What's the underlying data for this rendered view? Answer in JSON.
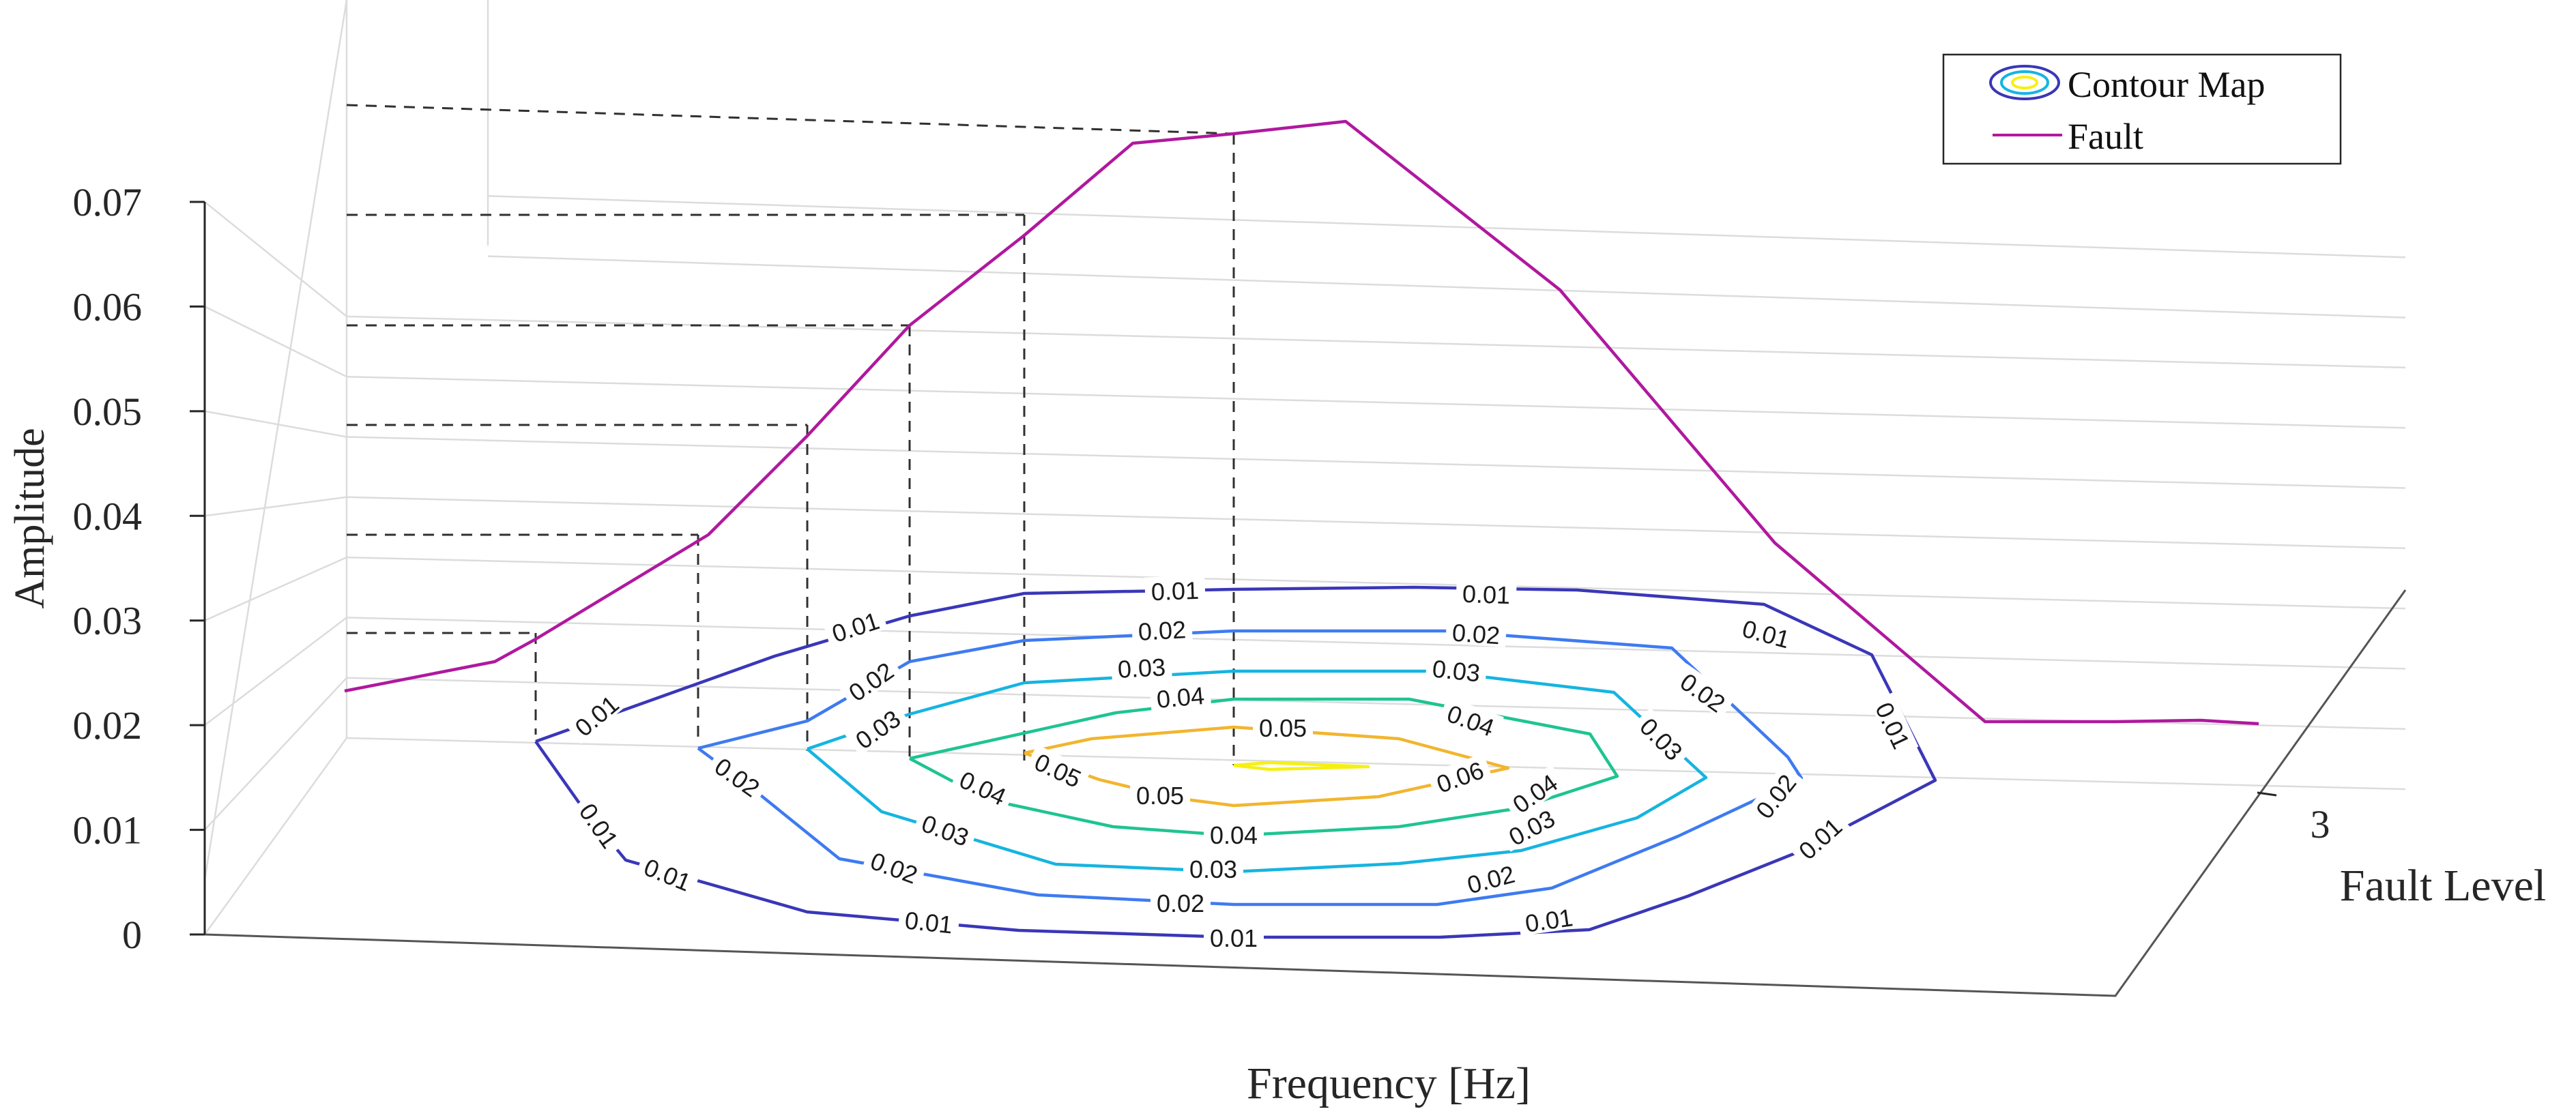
{
  "chart_data": {
    "type": "line",
    "title": "",
    "xlabel": "Frequency [Hz]",
    "ylabel": "Amplitude",
    "zlabel": "Fault Level",
    "zticks": [
      "3"
    ],
    "ylim": [
      0,
      0.07
    ],
    "yticks": [
      "0",
      "0.01",
      "0.02",
      "0.03",
      "0.04",
      "0.05",
      "0.06",
      "0.07"
    ],
    "grid": true,
    "legend_location": "top-right",
    "legend": [
      "Contour Map",
      "Fault"
    ],
    "colors": {
      "fault": "#B0189E",
      "axis": "#262626",
      "grid": "#dcdcdc",
      "dash": "#303030",
      "level_001": "#3A37B8",
      "level_002": "#3E7BF0",
      "level_003": "#16B4E0",
      "level_004": "#1EC491",
      "level_005": "#F2B52E",
      "level_006": "#F5F013"
    },
    "series": [
      {
        "name": "Fault",
        "amplitudes": [
          0.0224,
          0.0255,
          0.0282,
          0.038,
          0.0479,
          0.0583,
          0.0686,
          0.0787,
          0.0797,
          0.0808,
          0.0652,
          0.0386,
          0.0199,
          0.0199,
          0.02,
          0.0198
        ]
      }
    ],
    "projected_peak_levels": [
      0.0282,
      0.038,
      0.0479,
      0.0583,
      0.0686,
      0.0787
    ],
    "contour": {
      "name": "Contour Map",
      "levels": [
        "0.01",
        "0.02",
        "0.03",
        "0.04",
        "0.05",
        "0.06"
      ],
      "labels": [
        "0.01",
        "0.01",
        "0.01",
        "0.01",
        "0.01",
        "0.01",
        "0.01",
        "0.01",
        "0.01",
        "0.01",
        "0.01",
        "0.01",
        "0.02",
        "0.02",
        "0.02",
        "0.02",
        "0.02",
        "0.02",
        "0.02",
        "0.02",
        "0.02",
        "0.03",
        "0.03",
        "0.03",
        "0.03",
        "0.03",
        "0.03",
        "0.03",
        "0.04",
        "0.04",
        "0.04",
        "0.04",
        "0.04",
        "0.05",
        "0.05",
        "0.05",
        "0.06"
      ]
    }
  }
}
